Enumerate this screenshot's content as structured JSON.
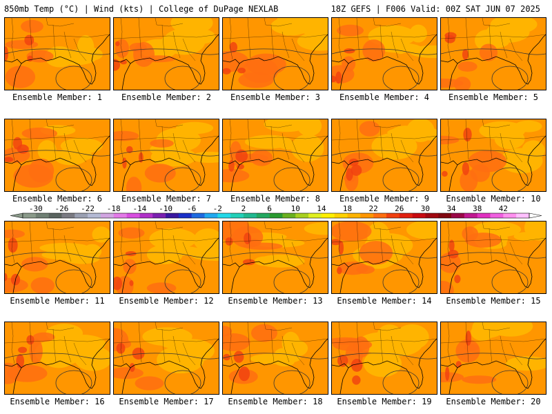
{
  "header": {
    "title_left": "850mb Temp (°C) | Wind (kts) | College of DuPage NEXLAB",
    "title_right": "18Z GEFS | F006 Valid: 00Z SAT JUN 07 2025"
  },
  "panels": [
    {
      "label": "Ensemble Member: 1"
    },
    {
      "label": "Ensemble Member: 2"
    },
    {
      "label": "Ensemble Member: 3"
    },
    {
      "label": "Ensemble Member: 4"
    },
    {
      "label": "Ensemble Member: 5"
    },
    {
      "label": "Ensemble Member: 6"
    },
    {
      "label": "Ensemble Member: 7"
    },
    {
      "label": "Ensemble Member: 8"
    },
    {
      "label": "Ensemble Member: 9"
    },
    {
      "label": "Ensemble Member: 10"
    },
    {
      "label": "Ensemble Member: 11"
    },
    {
      "label": "Ensemble Member: 12"
    },
    {
      "label": "Ensemble Member: 13"
    },
    {
      "label": "Ensemble Member: 14"
    },
    {
      "label": "Ensemble Member: 15"
    },
    {
      "label": "Ensemble Member: 16"
    },
    {
      "label": "Ensemble Member: 17"
    },
    {
      "label": "Ensemble Member: 18"
    },
    {
      "label": "Ensemble Member: 19"
    },
    {
      "label": "Ensemble Member: 20"
    }
  ],
  "colorbar": {
    "tick_labels": [
      "-30",
      "-26",
      "-22",
      "-18",
      "-14",
      "-10",
      "-6",
      "-2",
      "2",
      "6",
      "10",
      "14",
      "18",
      "22",
      "26",
      "30",
      "34",
      "38",
      "42"
    ],
    "colors": [
      "#8a9a8a",
      "#6f7f74",
      "#5a6460",
      "#7a7a82",
      "#9aa0b2",
      "#b4bad4",
      "#d2a6e2",
      "#e37ae8",
      "#d84ee0",
      "#b030c8",
      "#7a20b0",
      "#3a18a0",
      "#1a30c8",
      "#1e6ae0",
      "#20a8f0",
      "#22d8e8",
      "#22d0b8",
      "#20b890",
      "#22a860",
      "#2a9a30",
      "#6ab020",
      "#a8d020",
      "#e0f020",
      "#fff000",
      "#ffd200",
      "#ffb400",
      "#ff9600",
      "#ff6e10",
      "#f04010",
      "#e02010",
      "#c80a10",
      "#a00810",
      "#800810",
      "#9a0848",
      "#c01890",
      "#e030c0",
      "#f060e0",
      "#ff90f0",
      "#ffc0ff"
    ]
  }
}
